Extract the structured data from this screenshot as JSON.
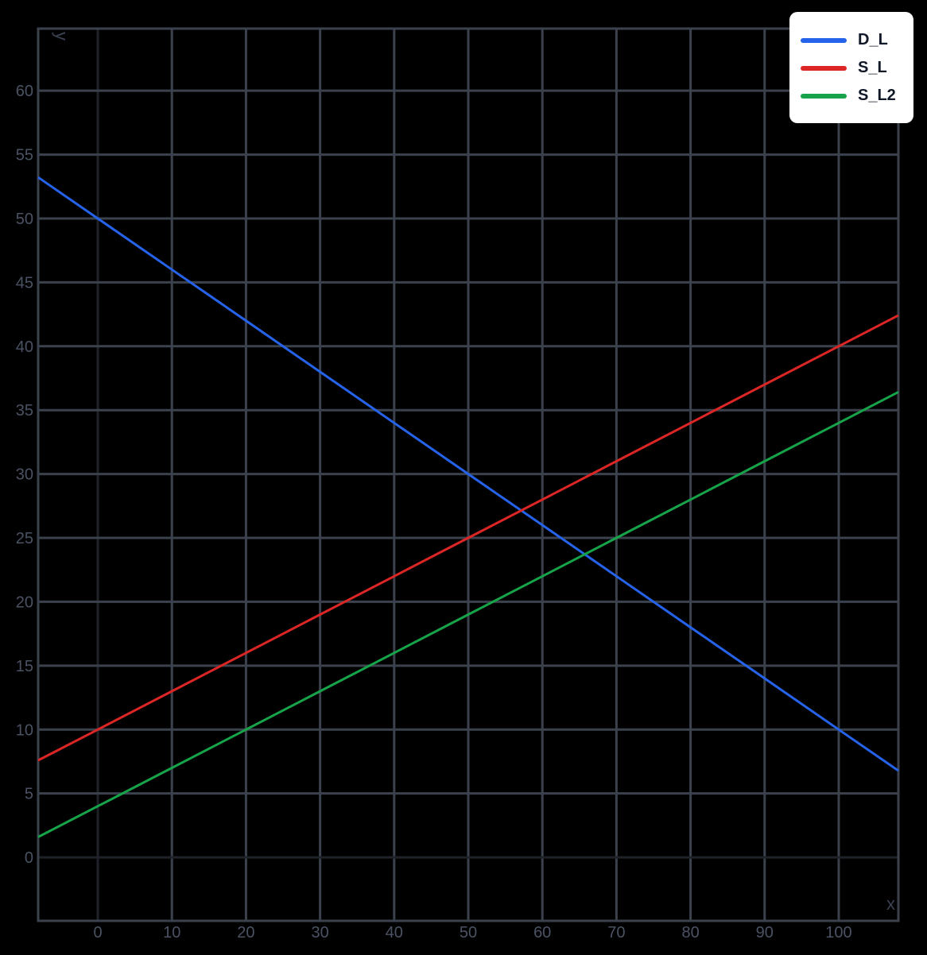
{
  "chart_data": {
    "type": "line",
    "title": "",
    "xlabel": "x",
    "ylabel": "y",
    "xlim": [
      -8.05,
      108.05
    ],
    "ylim": [
      -4.97,
      64.86
    ],
    "grid": true,
    "legend_position": "top-right",
    "x_ticks": [
      0,
      10,
      20,
      30,
      40,
      50,
      60,
      70,
      80,
      90,
      100
    ],
    "y_ticks": [
      0,
      5,
      10,
      15,
      20,
      25,
      30,
      35,
      40,
      45,
      50,
      55,
      60
    ],
    "x": [
      -8.05,
      0,
      10,
      20,
      30,
      40,
      50,
      60,
      70,
      80,
      90,
      100,
      108.05
    ],
    "series": [
      {
        "name": "D_L",
        "color": "#2563eb",
        "equation": "y = 50 - 0.4x",
        "values": [
          53.22,
          50,
          46,
          42,
          38,
          34,
          30,
          26,
          22,
          18,
          14,
          10,
          6.78
        ]
      },
      {
        "name": "S_L",
        "color": "#dc2626",
        "equation": "y = 10 + 0.3x",
        "values": [
          7.59,
          10,
          13,
          16,
          19,
          22,
          25,
          28,
          31,
          34,
          37,
          40,
          42.42
        ]
      },
      {
        "name": "S_L2",
        "color": "#16a34a",
        "equation": "y = 4 + 0.3x",
        "values": [
          1.59,
          4,
          7,
          10,
          13,
          16,
          19,
          22,
          25,
          28,
          31,
          34,
          36.42
        ]
      }
    ]
  },
  "legend": {
    "items": [
      {
        "label": "D_L",
        "color": "#2563eb"
      },
      {
        "label": "S_L",
        "color": "#dc2626"
      },
      {
        "label": "S_L2",
        "color": "#16a34a"
      }
    ]
  },
  "colors": {
    "background": "#000000",
    "grid": "#3b424d",
    "zero_line": "#1f2329",
    "tick_text": "#4a5263"
  }
}
